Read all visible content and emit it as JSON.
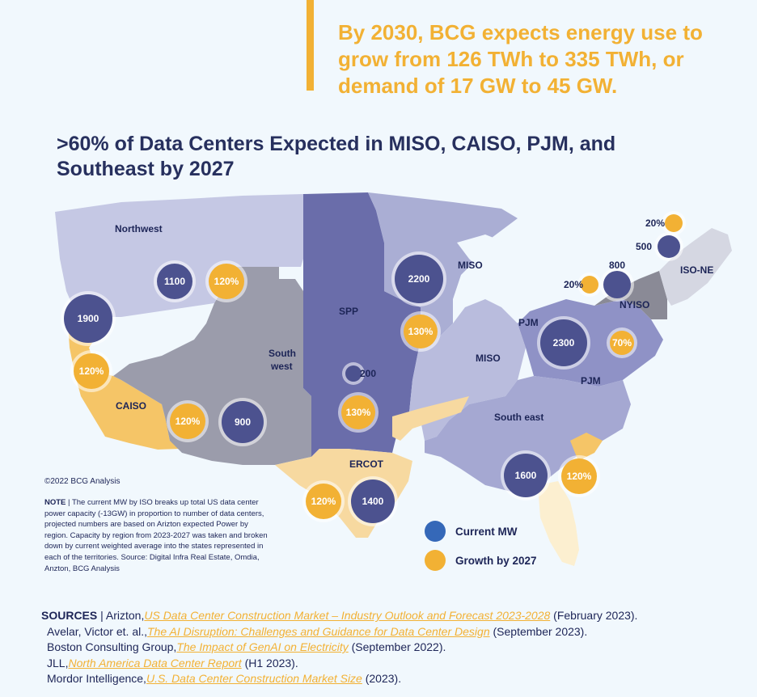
{
  "headline": "By 2030, BCG expects energy use to grow from 126 TWh to 335 TWh, or demand of 17 GW to 45 GW.",
  "map_title": ">60% of Data Centers Expected in MISO, CAISO, PJM, and Southeast by 2027",
  "regions": [
    {
      "name": "Northwest"
    },
    {
      "name": "CAISO"
    },
    {
      "name": "South"
    },
    {
      "name": "west"
    },
    {
      "name": "SPP"
    },
    {
      "name": "MISO"
    },
    {
      "name": "MISO"
    },
    {
      "name": "PJM"
    },
    {
      "name": "PJM"
    },
    {
      "name": "ERCOT"
    },
    {
      "name": "South east"
    },
    {
      "name": "NYISO"
    },
    {
      "name": "ISO-NE"
    }
  ],
  "bubbles": [
    {
      "region": "Northwest",
      "type": "current",
      "label": "1100"
    },
    {
      "region": "Northwest",
      "type": "growth",
      "label": "120%"
    },
    {
      "region": "CAISO",
      "type": "current",
      "label": "1900"
    },
    {
      "region": "CAISO",
      "type": "growth",
      "label": "120%"
    },
    {
      "region": "Southwest",
      "type": "growth",
      "label": "120%"
    },
    {
      "region": "Southwest",
      "type": "current",
      "label": "900"
    },
    {
      "region": "MISO",
      "type": "current",
      "label": "2200"
    },
    {
      "region": "MISO",
      "type": "growth",
      "label": "130%"
    },
    {
      "region": "SPP",
      "type": "current",
      "label": "200"
    },
    {
      "region": "SPP",
      "type": "growth",
      "label": "130%"
    },
    {
      "region": "ERCOT",
      "type": "growth",
      "label": "120%"
    },
    {
      "region": "ERCOT",
      "type": "current",
      "label": "1400"
    },
    {
      "region": "PJM",
      "type": "current",
      "label": "2300"
    },
    {
      "region": "PJM",
      "type": "growth",
      "label": "70%"
    },
    {
      "region": "Southeast",
      "type": "current",
      "label": "1600"
    },
    {
      "region": "Southeast",
      "type": "growth",
      "label": "120%"
    },
    {
      "region": "NYISO",
      "type": "growth",
      "label": "20%"
    },
    {
      "region": "NYISO",
      "type": "current",
      "label": "800"
    },
    {
      "region": "ISO-NE",
      "type": "growth",
      "label": "20%"
    },
    {
      "region": "ISO-NE",
      "type": "current",
      "label": "500"
    }
  ],
  "copyright": "©2022 BCG Analysis",
  "note": {
    "lead": "NOTE",
    "text": "The current MW by ISO breaks up total US data center power capacity (-13GW) in proportion to number of data centers, projected numbers are based on Arizton expected Power by region. Capacity by region from 2023-2027 was taken and broken down by current weighted average into the states represented in each of the territories. Source: Digital Infra Real Estate, Omdia, Anzton, BCG Analysis"
  },
  "legend": {
    "current": "Current MW",
    "growth": "Growth by 2027"
  },
  "colors": {
    "current": "#3568b8",
    "growth": "#f2b134",
    "current_bubble": "#4c528f",
    "growth_bubble": "#f2b134",
    "background": "#f1f8fd"
  },
  "sources": {
    "lead": "SOURCES",
    "separator": "|",
    "items": [
      {
        "author": "Arizton,",
        "title": "US Data Center Construction Market – Industry Outlook and Forecast 2023-2028",
        "date": "(February 2023)."
      },
      {
        "author": "Avelar, Victor et. al.,",
        "title": "The AI Disruption: Challenges and Guidance for Data Center Design",
        "date": "(September 2023)."
      },
      {
        "author": "Boston Consulting Group,",
        "title": "The Impact of GenAI on Electricity",
        "date": "(September 2022)."
      },
      {
        "author": "JLL,",
        "title": "North America Data Center Report",
        "date": "(H1 2023)."
      },
      {
        "author": "Mordor Intelligence,",
        "title": "U.S. Data Center Construction Market Size",
        "date": "(2023)."
      }
    ]
  }
}
